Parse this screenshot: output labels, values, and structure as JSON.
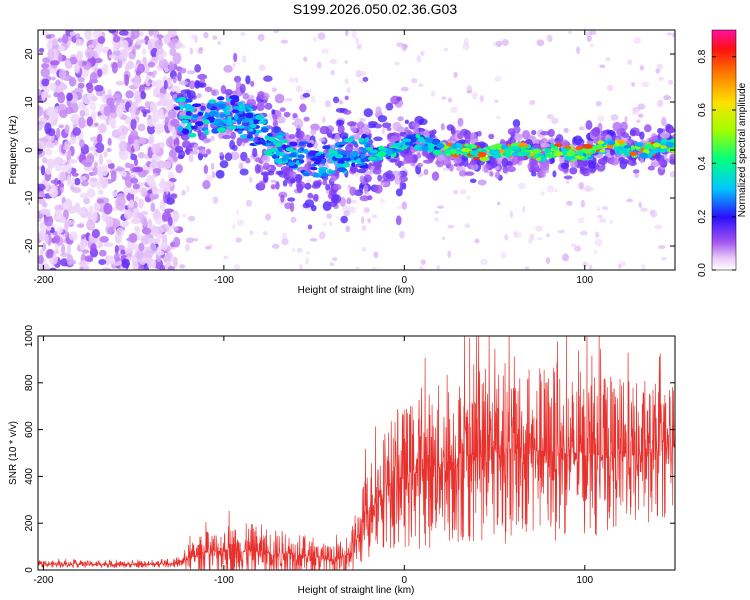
{
  "title": "S199.2026.050.02.36.G03",
  "chart_data": [
    {
      "type": "heatmap",
      "xlabel": "Height of straight line (km)",
      "ylabel": "Frequency (Hz)",
      "xlim": [
        -203,
        150
      ],
      "ylim": [
        -25,
        25
      ],
      "xticks": [
        -200,
        -100,
        0,
        100
      ],
      "yticks": [
        -20,
        -10,
        0,
        10,
        20
      ],
      "ridge": {
        "x": [
          -125,
          -115,
          -105,
          -95,
          -85,
          -75,
          -65,
          -55,
          -45,
          -35,
          -25,
          -15,
          -5,
          5,
          15,
          25,
          35,
          45,
          55,
          65,
          75,
          85,
          95,
          105,
          115,
          125,
          135,
          145
        ],
        "y": [
          8,
          6,
          7,
          8,
          5,
          2,
          0,
          -2,
          -3,
          -2,
          0,
          -1,
          0,
          2,
          1,
          0,
          0,
          -1,
          0,
          0,
          -1,
          0,
          -1,
          0,
          1,
          0,
          0,
          1
        ]
      },
      "colorbar": {
        "label": "Normalized spectral amplitude",
        "range": [
          0,
          0.9
        ],
        "ticks": [
          0,
          0.2,
          0.4,
          0.6,
          0.8
        ],
        "tick_labels": [
          "0.0",
          "0.2",
          "0.4",
          "0.6",
          "0.8"
        ]
      }
    },
    {
      "type": "line",
      "xlabel": "Height of straight line (km)",
      "ylabel": "SNR (10 * v/v)",
      "xlim": [
        -203,
        150
      ],
      "ylim": [
        0,
        1000
      ],
      "xticks": [
        -200,
        -100,
        0,
        100
      ],
      "yticks": [
        0,
        200,
        400,
        600,
        800,
        1000
      ],
      "series": [
        {
          "name": "SNR",
          "color": "#e8302c",
          "x": [
            -203,
            -180,
            -160,
            -140,
            -125,
            -120,
            -110,
            -100,
            -90,
            -80,
            -70,
            -60,
            -50,
            -40,
            -35,
            -30,
            -25,
            -20,
            -15,
            -10,
            -5,
            0,
            10,
            20,
            30,
            40,
            50,
            60,
            70,
            80,
            90,
            100,
            110,
            120,
            130,
            140,
            150
          ],
          "mean": [
            25,
            25,
            24,
            24,
            28,
            50,
            75,
            85,
            80,
            80,
            70,
            70,
            50,
            45,
            50,
            75,
            150,
            250,
            330,
            360,
            380,
            400,
            430,
            450,
            480,
            500,
            500,
            520,
            510,
            510,
            500,
            500,
            490,
            500,
            490,
            500,
            520
          ],
          "spread": [
            10,
            10,
            10,
            10,
            12,
            40,
            60,
            80,
            80,
            80,
            70,
            70,
            50,
            40,
            50,
            70,
            100,
            150,
            160,
            180,
            200,
            210,
            230,
            240,
            250,
            260,
            260,
            270,
            260,
            260,
            250,
            240,
            230,
            220,
            210,
            200,
            200
          ]
        }
      ]
    }
  ]
}
